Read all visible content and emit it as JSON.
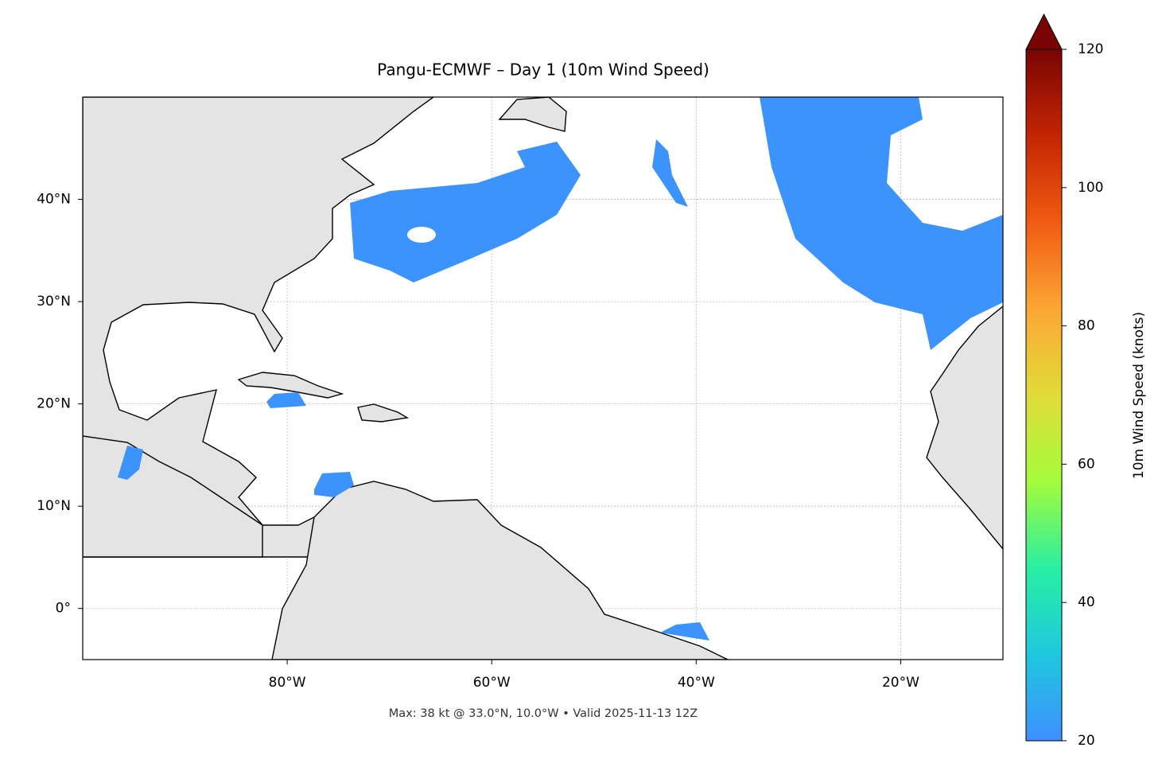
{
  "chart_data": {
    "type": "map",
    "title": "Pangu-ECMWF – Day 1 (10m Wind Speed)",
    "footer": "Max: 38 kt @ 33.0°N, 10.0°W • Valid 2025-11-13 12Z",
    "xlim": [
      -100,
      -10
    ],
    "ylim": [
      -5,
      50
    ],
    "xticks": [
      {
        "value": -80,
        "label": "80°W"
      },
      {
        "value": -60,
        "label": "60°W"
      },
      {
        "value": -40,
        "label": "40°W"
      },
      {
        "value": -20,
        "label": "20°W"
      }
    ],
    "yticks": [
      {
        "value": 0,
        "label": "0°"
      },
      {
        "value": 10,
        "label": "10°N"
      },
      {
        "value": 20,
        "label": "20°N"
      },
      {
        "value": 30,
        "label": "30°N"
      },
      {
        "value": 40,
        "label": "40°N"
      }
    ],
    "grid": true,
    "colorbar": {
      "label": "10m Wind Speed (knots)",
      "lim": [
        20,
        120
      ],
      "ticks": [
        20,
        40,
        60,
        80,
        100,
        120
      ],
      "colors": [
        "#3e8ffe",
        "#1fc8de",
        "#29efa2",
        "#a4fc3c",
        "#e1dc37",
        "#fca635",
        "#f05b12",
        "#c42503",
        "#7a0403"
      ]
    }
  }
}
